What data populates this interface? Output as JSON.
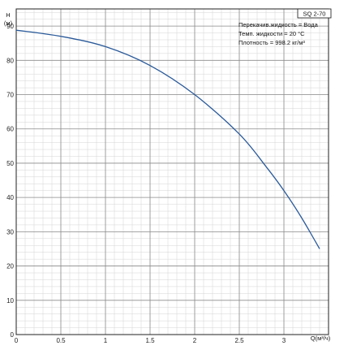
{
  "chart_data": {
    "type": "line",
    "model_label": "SQ 2-70",
    "ylabel_line1": "H",
    "ylabel_line2": "(м)",
    "xlabel": "Q(м³/ч)",
    "info_lines": [
      "Перекачив.жидкость = Вода",
      "Темп. жидкости = 20 °C",
      "Плотность = 998.2 кг/м³"
    ],
    "xlim": [
      0,
      3.5
    ],
    "ylim": [
      0,
      95
    ],
    "x_ticks": [
      0,
      0.5,
      1,
      1.5,
      2,
      2.5,
      3
    ],
    "x_tick_labels": [
      "0",
      "0.5",
      "1",
      "1.5",
      "2",
      "2.5",
      "3"
    ],
    "y_ticks": [
      0,
      10,
      20,
      30,
      40,
      50,
      60,
      70,
      80,
      90
    ],
    "y_tick_labels": [
      "0",
      "10",
      "20",
      "30",
      "40",
      "50",
      "60",
      "70",
      "80",
      "90"
    ],
    "grid": true,
    "series": [
      {
        "color": "#2a5a9a",
        "x": [
          0,
          0.5,
          1.0,
          1.5,
          2.0,
          2.5,
          2.8,
          3.0,
          3.2,
          3.4
        ],
        "y": [
          88.8,
          87.0,
          84.0,
          78.5,
          70.0,
          58.5,
          49.0,
          42.0,
          34.0,
          25.0
        ]
      }
    ]
  }
}
